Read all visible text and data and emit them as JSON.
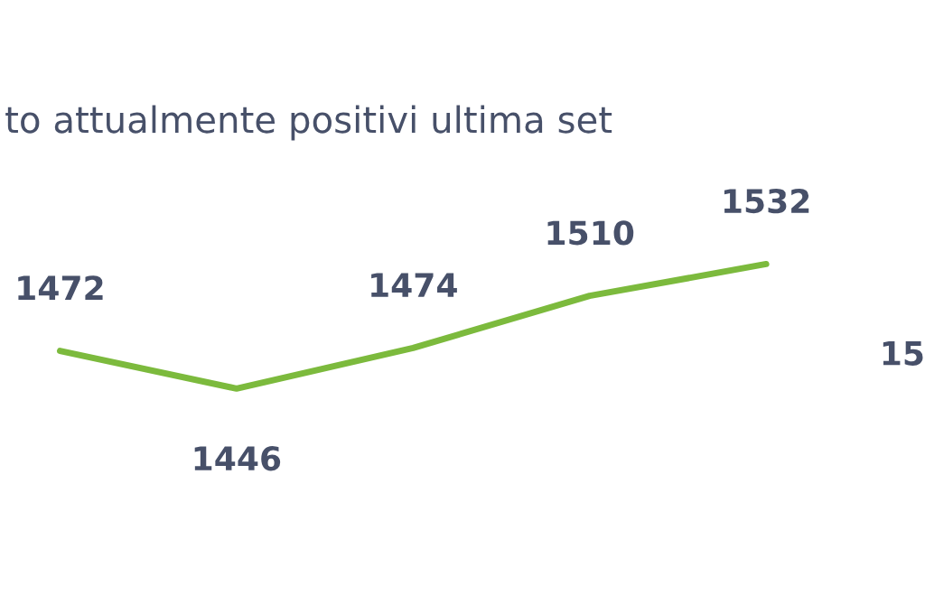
{
  "chart_data": {
    "type": "line",
    "title": "to attualmente positivi ultima set",
    "categories": [
      null,
      null,
      null,
      null,
      null
    ],
    "series": [
      {
        "color": "#7cba3d",
        "values": [
          1472,
          1446,
          1474,
          1510,
          1532
        ]
      }
    ],
    "data_labels": true,
    "annotations": [
      "15"
    ],
    "marker": "none",
    "line_style": "solid",
    "legend": false
  }
}
